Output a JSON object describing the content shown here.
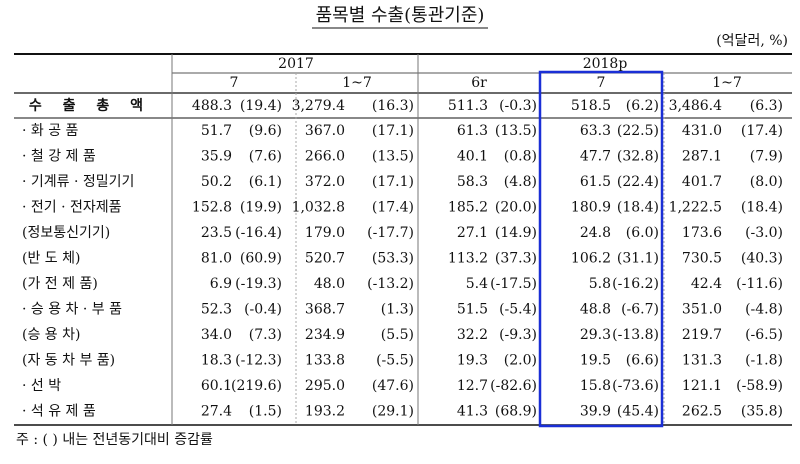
{
  "header": {
    "title": "품목별 수출(통관기준)",
    "unit": "(억달러, %)"
  },
  "table": {
    "years": [
      "2017",
      "2018p"
    ],
    "periods": [
      "7",
      "1~7",
      "6r",
      "7",
      "1~7"
    ],
    "rows": [
      {
        "label": "수 출 총 액",
        "cells": [
          "488.3",
          "(19.4)",
          "3,279.4",
          "(16.3)",
          "511.3",
          "(-0.3)",
          "518.5",
          "(6.2)",
          "3,486.4",
          "(6.3)"
        ]
      },
      {
        "label": "· 화 공 품",
        "cells": [
          "51.7",
          "(9.6)",
          "367.0",
          "(17.1)",
          "61.3",
          "(13.5)",
          "63.3",
          "(22.5)",
          "431.0",
          "(17.4)"
        ]
      },
      {
        "label": "· 철 강 제 품",
        "cells": [
          "35.9",
          "(7.6)",
          "266.0",
          "(13.5)",
          "40.1",
          "(0.8)",
          "47.7",
          "(32.8)",
          "287.1",
          "(7.9)"
        ]
      },
      {
        "label": "· 기계류 · 정밀기기",
        "cells": [
          "50.2",
          "(6.1)",
          "372.0",
          "(17.1)",
          "58.3",
          "(4.8)",
          "61.5",
          "(22.4)",
          "401.7",
          "(8.0)"
        ]
      },
      {
        "label": "· 전기 · 전자제품",
        "cells": [
          "152.8",
          "(19.9)",
          "1,032.8",
          "(17.4)",
          "185.2",
          "(20.0)",
          "180.9",
          "(18.4)",
          "1,222.5",
          "(18.4)"
        ]
      },
      {
        "label": "(정보통신기기)",
        "cells": [
          "23.5",
          "(-16.4)",
          "179.0",
          "(-17.7)",
          "27.1",
          "(14.9)",
          "24.8",
          "(6.0)",
          "173.6",
          "(-3.0)"
        ]
      },
      {
        "label": "(반 도 체)",
        "cells": [
          "81.0",
          "(60.9)",
          "520.7",
          "(53.3)",
          "113.2",
          "(37.3)",
          "106.2",
          "(31.1)",
          "730.5",
          "(40.3)"
        ]
      },
      {
        "label": "(가 전 제 품)",
        "cells": [
          "6.9",
          "(-19.3)",
          "48.0",
          "(-13.2)",
          "5.4",
          "(-17.5)",
          "5.8",
          "(-16.2)",
          "42.4",
          "(-11.6)"
        ]
      },
      {
        "label": "· 승 용 차 · 부 품",
        "cells": [
          "52.3",
          "(-0.4)",
          "368.7",
          "(1.3)",
          "51.5",
          "(-5.4)",
          "48.8",
          "(-6.7)",
          "351.0",
          "(-4.8)"
        ]
      },
      {
        "label": "(승 용 차)",
        "cells": [
          "34.0",
          "(7.3)",
          "234.9",
          "(5.5)",
          "32.2",
          "(-9.3)",
          "29.3",
          "(-13.8)",
          "219.7",
          "(-6.5)"
        ]
      },
      {
        "label": "(자 동 차 부 품)",
        "cells": [
          "18.3",
          "(-12.3)",
          "133.8",
          "(-5.5)",
          "19.3",
          "(2.0)",
          "19.5",
          "(6.6)",
          "131.3",
          "(-1.8)"
        ]
      },
      {
        "label": "· 선 박",
        "cells": [
          "60.1",
          "(219.6)",
          "295.0",
          "(47.6)",
          "12.7",
          "(-82.6)",
          "15.8",
          "(-73.6)",
          "121.1",
          "(-58.9)"
        ]
      },
      {
        "label": "· 석 유 제 품",
        "cells": [
          "27.4",
          "(1.5)",
          "193.2",
          "(29.1)",
          "41.3",
          "(68.9)",
          "39.9",
          "(45.4)",
          "262.5",
          "(35.8)"
        ]
      }
    ]
  },
  "note": "주 : ( ) 내는 전년동기대비 증감률"
}
